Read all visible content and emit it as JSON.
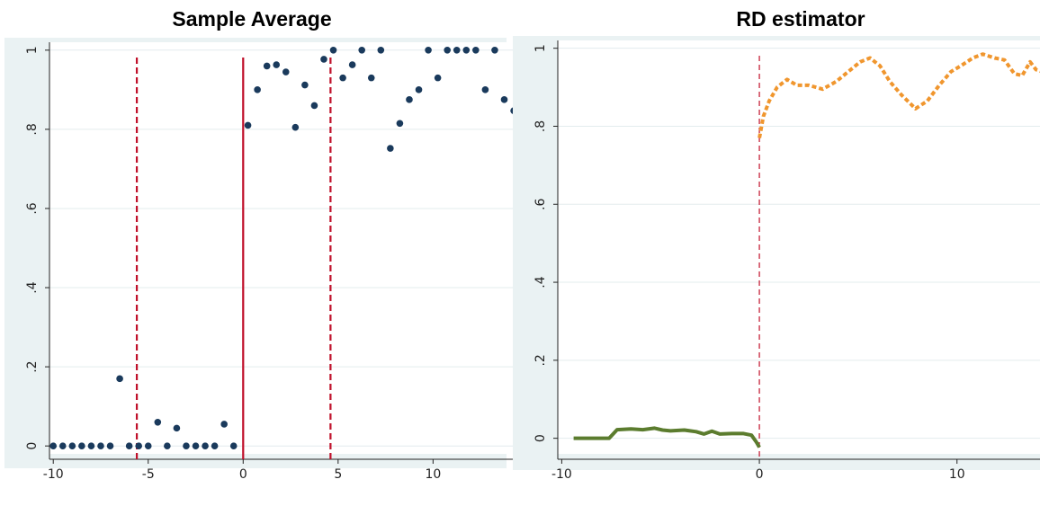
{
  "titles": {
    "left": "Sample Average",
    "right": "RD estimator"
  },
  "colors": {
    "panel_bg": "#eaf2f3",
    "plot_bg": "#ffffff",
    "grid": "#e3ecee",
    "points": "#1a3a5c",
    "cutoff": "#c0102a",
    "left_line": "#5b7c2e",
    "right_line": "#f0962e"
  },
  "chart_data": [
    {
      "type": "scatter",
      "title": "Sample Average",
      "xlim": [
        -10.2,
        14.2
      ],
      "ylim": [
        -0.02,
        1.02
      ],
      "xticks": [
        -10,
        -5,
        0,
        5,
        10
      ],
      "yticks": [
        0,
        0.2,
        0.4,
        0.6,
        0.8,
        1
      ],
      "ytick_labels": [
        "0",
        ".2",
        ".4",
        ".6",
        ".8",
        "1"
      ],
      "grid": true,
      "vlines": [
        {
          "x": -5.6,
          "style": "dashed"
        },
        {
          "x": 0,
          "style": "solid"
        },
        {
          "x": 4.6,
          "style": "dashed"
        }
      ],
      "series": [
        {
          "x": [
            -10,
            -9.5,
            -9,
            -8.5,
            -8,
            -7.5,
            -7,
            -6.5,
            -6,
            -5.5,
            -5,
            -4.5,
            -4,
            -3.5,
            -3,
            -2.5,
            -2,
            -1.5,
            -1,
            -0.5,
            0.25,
            0.75,
            1.25,
            1.75,
            2.25,
            2.75,
            3.25,
            3.75,
            4.25,
            4.75,
            5.25,
            5.75,
            6.25,
            6.75,
            7.25,
            7.75,
            8.25,
            8.75,
            9.25,
            9.75,
            10.25,
            10.75,
            11.25,
            11.75,
            12.25,
            12.75,
            13.25,
            13.75,
            14.25
          ],
          "y": [
            0,
            0,
            0,
            0,
            0,
            0,
            0,
            0.17,
            0,
            0,
            0,
            0.06,
            0,
            0.045,
            0,
            0,
            0,
            0,
            0.055,
            0,
            0.81,
            0.9,
            0.96,
            0.963,
            0.945,
            0.805,
            0.912,
            0.86,
            0.977,
            1,
            0.93,
            0.963,
            1,
            0.93,
            1,
            0.752,
            0.815,
            0.875,
            0.9,
            1,
            0.93,
            1,
            1,
            1,
            1,
            0.9,
            1,
            0.875,
            0.847
          ]
        }
      ]
    },
    {
      "type": "line",
      "title": "RD estimator",
      "xlim": [
        -10.2,
        14.2
      ],
      "ylim": [
        -0.04,
        1.02
      ],
      "xticks": [
        -10,
        0,
        10
      ],
      "yticks": [
        0,
        0.2,
        0.4,
        0.6,
        0.8,
        1
      ],
      "ytick_labels": [
        "0",
        ".2",
        ".4",
        ".6",
        ".8",
        "1"
      ],
      "grid": true,
      "vlines": [
        {
          "x": 0,
          "style": "dashed"
        }
      ],
      "series": [
        {
          "style": "solid",
          "x": [
            -9.4,
            -8.5,
            -7.6,
            -7.2,
            -6.5,
            -5.9,
            -5.3,
            -4.9,
            -4.5,
            -3.8,
            -3.2,
            -2.8,
            -2.4,
            -2.0,
            -1.4,
            -0.8,
            -0.4,
            -0.15,
            0
          ],
          "y": [
            0,
            0,
            0,
            0.022,
            0.024,
            0.022,
            0.026,
            0.021,
            0.019,
            0.021,
            0.017,
            0.011,
            0.018,
            0.011,
            0.012,
            0.012,
            0.008,
            -0.01,
            -0.023
          ]
        },
        {
          "style": "dashed",
          "x": [
            0,
            0.2,
            0.5,
            0.9,
            1.4,
            1.9,
            2.5,
            3.2,
            3.9,
            4.5,
            5.1,
            5.6,
            6.1,
            6.6,
            7.2,
            7.9,
            8.5,
            9.1,
            9.7,
            10.2,
            10.8,
            11.3,
            11.9,
            12.4,
            12.9,
            13.3,
            13.7,
            14.0,
            14.3
          ],
          "y": [
            0.77,
            0.825,
            0.865,
            0.9,
            0.92,
            0.905,
            0.905,
            0.895,
            0.915,
            0.94,
            0.965,
            0.975,
            0.955,
            0.915,
            0.88,
            0.845,
            0.865,
            0.905,
            0.94,
            0.955,
            0.975,
            0.985,
            0.975,
            0.97,
            0.935,
            0.93,
            0.965,
            0.945,
            0.94
          ]
        }
      ]
    }
  ]
}
